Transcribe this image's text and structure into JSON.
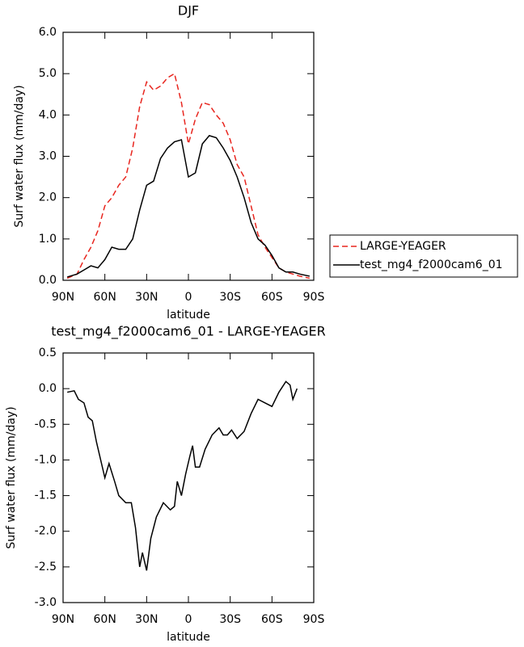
{
  "chart_data": [
    {
      "type": "line",
      "title": "DJF",
      "xlabel": "latitude",
      "ylabel": "Surf water flux (mm/day)",
      "x": [
        87,
        80,
        75,
        70,
        65,
        60,
        55,
        50,
        45,
        40,
        35,
        30,
        25,
        20,
        15,
        10,
        5,
        0,
        -5,
        -10,
        -15,
        -20,
        -25,
        -30,
        -35,
        -40,
        -45,
        -50,
        -55,
        -60,
        -65,
        -70,
        -75,
        -80,
        -87
      ],
      "series": [
        {
          "name": "LARGE-YEAGER",
          "color": "#e8261f",
          "dashed": true,
          "values": [
            0.05,
            0.15,
            0.5,
            0.8,
            1.2,
            1.8,
            2.0,
            2.3,
            2.5,
            3.2,
            4.2,
            4.8,
            4.6,
            4.7,
            4.9,
            5.0,
            4.3,
            3.3,
            3.9,
            4.3,
            4.25,
            4.0,
            3.8,
            3.4,
            2.8,
            2.5,
            1.8,
            1.1,
            0.8,
            0.55,
            0.3,
            0.2,
            0.15,
            0.1,
            0.05
          ]
        },
        {
          "name": "test_mg4_f2000cam6_01",
          "color": "#000000",
          "dashed": false,
          "values": [
            0.08,
            0.15,
            0.25,
            0.35,
            0.3,
            0.5,
            0.8,
            0.75,
            0.75,
            1.0,
            1.7,
            2.3,
            2.4,
            2.95,
            3.2,
            3.35,
            3.4,
            2.5,
            2.6,
            3.3,
            3.5,
            3.45,
            3.2,
            2.9,
            2.5,
            2.0,
            1.4,
            1.0,
            0.85,
            0.6,
            0.3,
            0.2,
            0.2,
            0.15,
            0.1
          ]
        }
      ],
      "xlim": [
        90,
        -90
      ],
      "xticks": [
        {
          "value": 90,
          "label": "90N"
        },
        {
          "value": 60,
          "label": "60N"
        },
        {
          "value": 30,
          "label": "30N"
        },
        0,
        {
          "value": -30,
          "label": "30S"
        },
        {
          "value": -60,
          "label": "60S"
        },
        {
          "value": -90,
          "label": "90S"
        }
      ],
      "ylim": [
        0,
        6
      ],
      "yticks": [
        {
          "value": 0,
          "label": "0.0"
        },
        {
          "value": 1,
          "label": "1.0"
        },
        {
          "value": 2,
          "label": "2.0"
        },
        {
          "value": 3,
          "label": "3.0"
        },
        {
          "value": 4,
          "label": "4.0"
        },
        {
          "value": 5,
          "label": "5.0"
        },
        {
          "value": 6,
          "label": "6.0"
        }
      ],
      "legend": "right"
    },
    {
      "type": "line",
      "title": "test_mg4_f2000cam6_01 - LARGE-YEAGER",
      "xlabel": "latitude",
      "ylabel": "Surf water flux (mm/day)",
      "x": [
        87,
        82,
        79,
        75,
        72,
        69,
        66,
        60,
        57,
        53,
        50,
        45,
        41,
        38,
        35,
        33,
        30,
        27,
        23,
        18,
        13,
        10,
        8,
        5,
        2,
        -1,
        -3,
        -5,
        -8,
        -12,
        -17,
        -22,
        -25,
        -28,
        -31,
        -35,
        -40,
        -45,
        -50,
        -55,
        -60,
        -65,
        -70,
        -73,
        -75,
        -78
      ],
      "series": [
        {
          "color": "#000000",
          "dashed": false,
          "values": [
            -0.05,
            -0.03,
            -0.15,
            -0.2,
            -0.4,
            -0.45,
            -0.75,
            -1.25,
            -1.05,
            -1.3,
            -1.5,
            -1.6,
            -1.6,
            -1.95,
            -2.5,
            -2.3,
            -2.55,
            -2.1,
            -1.8,
            -1.6,
            -1.7,
            -1.65,
            -1.3,
            -1.5,
            -1.2,
            -0.95,
            -0.8,
            -1.1,
            -1.1,
            -0.85,
            -0.65,
            -0.55,
            -0.65,
            -0.65,
            -0.58,
            -0.7,
            -0.6,
            -0.35,
            -0.15,
            -0.2,
            -0.25,
            -0.05,
            0.1,
            0.05,
            -0.15,
            0.0
          ]
        }
      ],
      "xlim": [
        90,
        -90
      ],
      "xticks": [
        {
          "value": 90,
          "label": "90N"
        },
        {
          "value": 60,
          "label": "60N"
        },
        {
          "value": 30,
          "label": "30N"
        },
        0,
        {
          "value": -30,
          "label": "30S"
        },
        {
          "value": -60,
          "label": "60S"
        },
        {
          "value": -90,
          "label": "90S"
        }
      ],
      "ylim": [
        -3,
        0.5
      ],
      "yticks": [
        0.5,
        {
          "value": 0,
          "label": "0.0"
        },
        -0.5,
        {
          "value": -1,
          "label": "-1.0"
        },
        -1.5,
        {
          "value": -2,
          "label": "-2.0"
        },
        -2.5,
        {
          "value": -3,
          "label": "-3.0"
        }
      ]
    }
  ]
}
